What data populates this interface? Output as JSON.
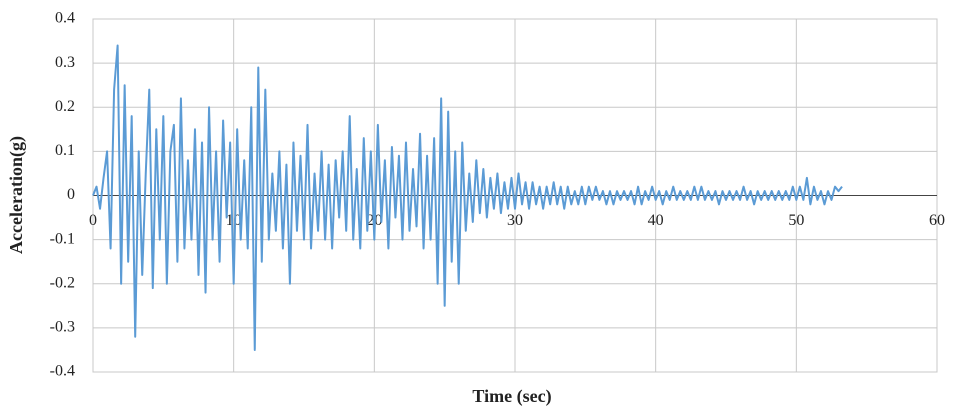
{
  "chart_data": {
    "type": "line",
    "x_label": "Time (sec)",
    "y_label": "Acceleration(g)",
    "color": "#5b9bd5",
    "grid": true,
    "xlim": [
      0,
      60
    ],
    "xticks": [
      0,
      10,
      20,
      30,
      40,
      50,
      60
    ],
    "ylim": [
      -0.4,
      0.4
    ],
    "yticks": [
      -0.4,
      -0.3,
      -0.2,
      -0.1,
      0,
      0.1,
      0.2,
      0.3,
      0.4
    ],
    "x": [
      0,
      0.25,
      0.5,
      0.75,
      1,
      1.25,
      1.5,
      1.75,
      2,
      2.25,
      2.5,
      2.75,
      3,
      3.25,
      3.5,
      3.75,
      4,
      4.25,
      4.5,
      4.75,
      5,
      5.25,
      5.5,
      5.75,
      6,
      6.25,
      6.5,
      6.75,
      7,
      7.25,
      7.5,
      7.75,
      8,
      8.25,
      8.5,
      8.75,
      9,
      9.25,
      9.5,
      9.75,
      10,
      10.25,
      10.5,
      10.75,
      11,
      11.25,
      11.5,
      11.75,
      12,
      12.25,
      12.5,
      12.75,
      13,
      13.25,
      13.5,
      13.75,
      14,
      14.25,
      14.5,
      14.75,
      15,
      15.25,
      15.5,
      15.75,
      16,
      16.25,
      16.5,
      16.75,
      17,
      17.25,
      17.5,
      17.75,
      18,
      18.25,
      18.5,
      18.75,
      19,
      19.25,
      19.5,
      19.75,
      20,
      20.25,
      20.5,
      20.75,
      21,
      21.25,
      21.5,
      21.75,
      22,
      22.25,
      22.5,
      22.75,
      23,
      23.25,
      23.5,
      23.75,
      24,
      24.25,
      24.5,
      24.75,
      25,
      25.25,
      25.5,
      25.75,
      26,
      26.25,
      26.5,
      26.75,
      27,
      27.25,
      27.5,
      27.75,
      28,
      28.25,
      28.5,
      28.75,
      29,
      29.25,
      29.5,
      29.75,
      30,
      30.25,
      30.5,
      30.75,
      31,
      31.25,
      31.5,
      31.75,
      32,
      32.25,
      32.5,
      32.75,
      33,
      33.25,
      33.5,
      33.75,
      34,
      34.25,
      34.5,
      34.75,
      35,
      35.25,
      35.5,
      35.75,
      36,
      36.25,
      36.5,
      36.75,
      37,
      37.25,
      37.5,
      37.75,
      38,
      38.25,
      38.5,
      38.75,
      39,
      39.25,
      39.5,
      39.75,
      40,
      40.25,
      40.5,
      40.75,
      41,
      41.25,
      41.5,
      41.75,
      42,
      42.25,
      42.5,
      42.75,
      43,
      43.25,
      43.5,
      43.75,
      44,
      44.25,
      44.5,
      44.75,
      45,
      45.25,
      45.5,
      45.75,
      46,
      46.25,
      46.5,
      46.75,
      47,
      47.25,
      47.5,
      47.75,
      48,
      48.25,
      48.5,
      48.75,
      49,
      49.25,
      49.5,
      49.75,
      50,
      50.25,
      50.5,
      50.75,
      51,
      51.25,
      51.5,
      51.75,
      52,
      52.25,
      52.5,
      52.75,
      53,
      53.25
    ],
    "values": [
      0,
      0.02,
      -0.03,
      0.04,
      0.1,
      -0.12,
      0.24,
      0.34,
      -0.2,
      0.25,
      -0.15,
      0.18,
      -0.32,
      0.1,
      -0.18,
      0.05,
      0.24,
      -0.21,
      0.15,
      -0.1,
      0.18,
      -0.2,
      0.1,
      0.16,
      -0.15,
      0.22,
      -0.12,
      0.08,
      -0.1,
      0.15,
      -0.18,
      0.12,
      -0.22,
      0.2,
      -0.1,
      0.1,
      -0.15,
      0.17,
      -0.05,
      0.12,
      -0.2,
      0.15,
      -0.1,
      0.08,
      -0.12,
      0.2,
      -0.35,
      0.29,
      -0.15,
      0.24,
      -0.1,
      0.05,
      -0.08,
      0.1,
      -0.12,
      0.07,
      -0.2,
      0.12,
      -0.08,
      0.09,
      -0.1,
      0.16,
      -0.12,
      0.05,
      -0.08,
      0.1,
      -0.1,
      0.07,
      -0.12,
      0.08,
      -0.05,
      0.1,
      -0.08,
      0.18,
      -0.1,
      0.06,
      -0.12,
      0.13,
      -0.08,
      0.1,
      -0.1,
      0.16,
      -0.06,
      0.08,
      -0.12,
      0.11,
      -0.05,
      0.09,
      -0.1,
      0.12,
      -0.08,
      0.06,
      -0.07,
      0.14,
      -0.12,
      0.09,
      -0.1,
      0.13,
      -0.2,
      0.22,
      -0.25,
      0.19,
      -0.15,
      0.1,
      -0.2,
      0.12,
      -0.08,
      0.05,
      -0.06,
      0.08,
      -0.04,
      0.06,
      -0.05,
      0.04,
      -0.03,
      0.05,
      -0.04,
      0.03,
      -0.03,
      0.04,
      -0.03,
      0.05,
      -0.02,
      0.03,
      -0.03,
      0.03,
      -0.02,
      0.02,
      -0.03,
      0.02,
      -0.02,
      0.03,
      -0.02,
      0.02,
      -0.03,
      0.02,
      -0.02,
      0.01,
      -0.02,
      0.02,
      -0.02,
      0.02,
      -0.01,
      0.02,
      -0.01,
      0.01,
      -0.02,
      0.01,
      -0.02,
      0.01,
      -0.01,
      0.01,
      -0.01,
      0.01,
      -0.02,
      0.02,
      -0.02,
      0.01,
      -0.01,
      0.02,
      -0.01,
      0.01,
      -0.02,
      0.01,
      -0.01,
      0.02,
      -0.01,
      0.01,
      -0.01,
      0.01,
      -0.01,
      0.02,
      -0.01,
      0.02,
      -0.01,
      0.01,
      -0.01,
      0.01,
      -0.02,
      0.01,
      -0.01,
      0.01,
      -0.01,
      0.01,
      -0.01,
      0.02,
      -0.01,
      0.01,
      -0.02,
      0.01,
      -0.01,
      0.01,
      -0.01,
      0.01,
      -0.01,
      0.01,
      -0.01,
      0.01,
      -0.01,
      0.02,
      -0.01,
      0.02,
      -0.01,
      0.04,
      -0.02,
      0.02,
      -0.01,
      0.01,
      -0.02,
      0.01,
      -0.01,
      0.02,
      0.01,
      0.02
    ]
  }
}
